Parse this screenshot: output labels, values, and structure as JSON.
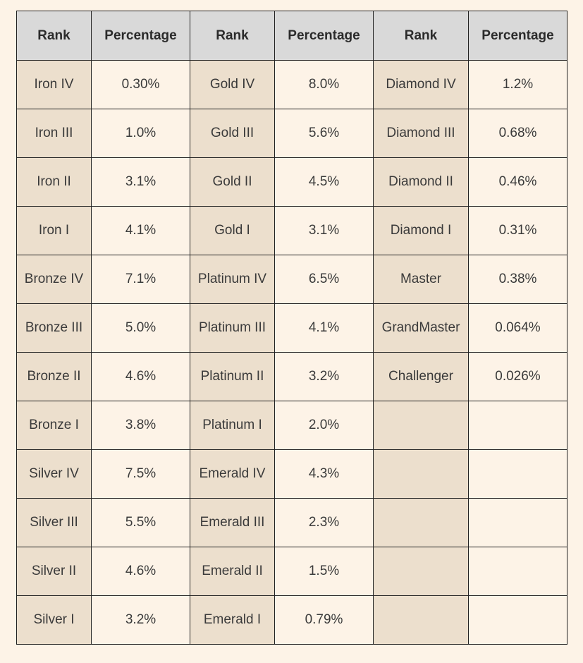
{
  "headers": [
    "Rank",
    "Percentage",
    "Rank",
    "Percentage",
    "Rank",
    "Percentage"
  ],
  "rows": [
    [
      "Iron IV",
      "0.30%",
      "Gold IV",
      "8.0%",
      "Diamond IV",
      "1.2%"
    ],
    [
      "Iron III",
      "1.0%",
      "Gold III",
      "5.6%",
      "Diamond III",
      "0.68%"
    ],
    [
      "Iron II",
      "3.1%",
      "Gold II",
      "4.5%",
      "Diamond II",
      "0.46%"
    ],
    [
      "Iron I",
      "4.1%",
      "Gold I",
      "3.1%",
      "Diamond I",
      "0.31%"
    ],
    [
      "Bronze IV",
      "7.1%",
      "Platinum IV",
      "6.5%",
      "Master",
      "0.38%"
    ],
    [
      "Bronze III",
      "5.0%",
      "Platinum III",
      "4.1%",
      "GrandMaster",
      "0.064%"
    ],
    [
      "Bronze II",
      "4.6%",
      "Platinum II",
      "3.2%",
      "Challenger",
      "0.026%"
    ],
    [
      "Bronze I",
      "3.8%",
      "Platinum I",
      "2.0%",
      "",
      ""
    ],
    [
      "Silver IV",
      "7.5%",
      "Emerald IV",
      "4.3%",
      "",
      ""
    ],
    [
      "Silver III",
      "5.5%",
      "Emerald III",
      "2.3%",
      "",
      ""
    ],
    [
      "Silver II",
      "4.6%",
      "Emerald II",
      "1.5%",
      "",
      ""
    ],
    [
      "Silver I",
      "3.2%",
      "Emerald I",
      "0.79%",
      "",
      ""
    ]
  ]
}
